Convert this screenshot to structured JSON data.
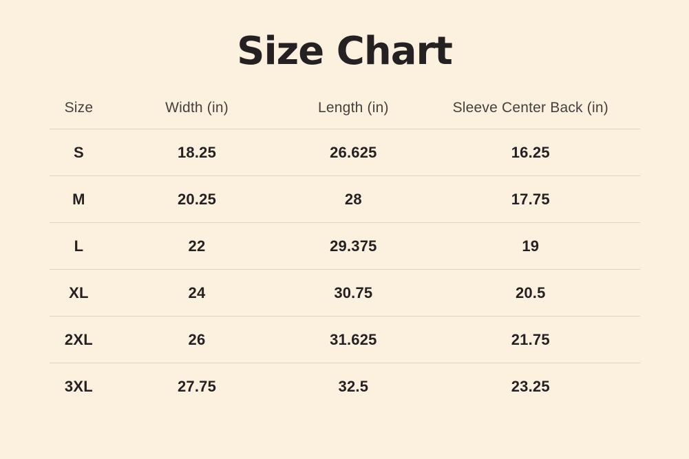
{
  "title": "Size Chart",
  "colors": {
    "background": "#fcf0df",
    "title_text": "#252122",
    "header_text": "#45403c",
    "cell_text": "#252122",
    "divider": "#dbd2c6"
  },
  "chart_data": {
    "type": "table",
    "title": "Size Chart",
    "columns": [
      "Size",
      "Width (in)",
      "Length (in)",
      "Sleeve Center Back (in)"
    ],
    "rows": [
      [
        "S",
        "18.25",
        "26.625",
        "16.25"
      ],
      [
        "M",
        "20.25",
        "28",
        "17.75"
      ],
      [
        "L",
        "22",
        "29.375",
        "19"
      ],
      [
        "XL",
        "24",
        "30.75",
        "20.5"
      ],
      [
        "2XL",
        "26",
        "31.625",
        "21.75"
      ],
      [
        "3XL",
        "27.75",
        "32.5",
        "23.25"
      ]
    ],
    "layout_hints": {
      "grid": "horizontal row dividers only",
      "alignment": "all cells centered",
      "last_row_has_no_bottom_divider": true
    }
  }
}
